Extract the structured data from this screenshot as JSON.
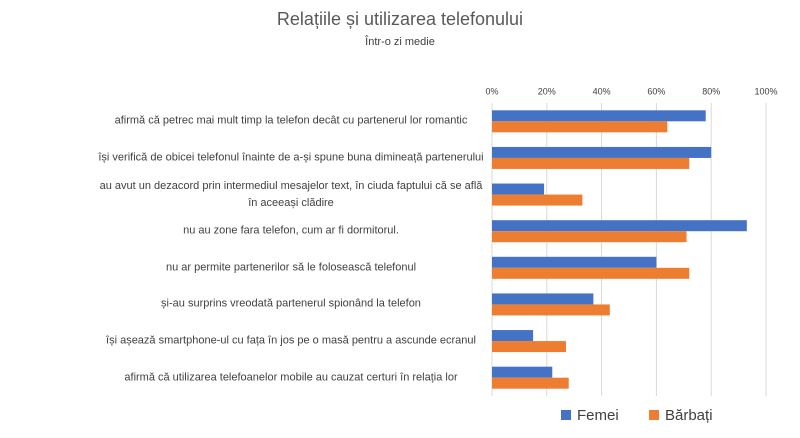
{
  "chart_data": {
    "type": "hbar",
    "title": "Relațiile și utilizarea telefonului",
    "subtitle": "Într-o zi medie",
    "categories": [
      "afirmă că petrec mai mult timp la telefon decât cu partenerul lor romantic",
      "își verifică de obicei telefonul înainte de a-și spune buna dimineață partenerului",
      "au avut un dezacord prin intermediul mesajelor text, în ciuda faptului că se află în aceeași clădire",
      "nu au zone fara  telefon, cum ar fi dormitorul.",
      "nu ar permite partenerilor să le folosească telefonul",
      "și-au surprins vreodată partenerul spionând la telefon",
      "își așează smartphone-ul cu fața în jos pe o masă pentru a ascunde ecranul",
      "afirmă că utilizarea telefoanelor mobile au cauzat certuri în relația lor"
    ],
    "series": [
      {
        "name": "Femei",
        "color": "#4472c4",
        "values": [
          78,
          80,
          19,
          93,
          60,
          37,
          15,
          22
        ]
      },
      {
        "name": "Bărbați",
        "color": "#ed7d31",
        "values": [
          64,
          72,
          33,
          71,
          72,
          43,
          27,
          28
        ]
      }
    ],
    "xlim": [
      0,
      100
    ],
    "xticks": [
      {
        "value": 0,
        "label": "0%"
      },
      {
        "value": 20,
        "label": "20%"
      },
      {
        "value": 40,
        "label": "40%"
      },
      {
        "value": 60,
        "label": "60%"
      },
      {
        "value": 80,
        "label": "80%"
      },
      {
        "value": 100,
        "label": "100%"
      }
    ],
    "grid": true,
    "legend": "bottom"
  }
}
